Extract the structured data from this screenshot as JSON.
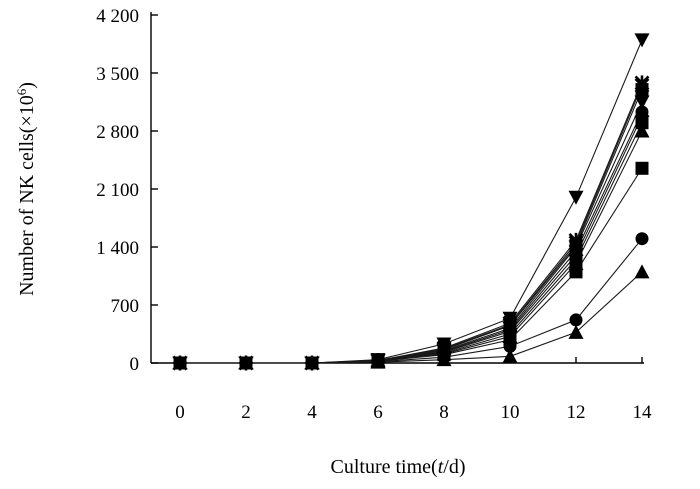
{
  "chart_data": {
    "type": "line",
    "title": "",
    "xlabel": "Culture time(t/d)",
    "xlabel_parts": [
      "Culture time(",
      "t",
      "/d)"
    ],
    "ylabel": "Number of NK cells(×10⁶)",
    "ylabel_parts": [
      "Number of NK cells(×10",
      "6",
      ")"
    ],
    "x": [
      0,
      2,
      4,
      6,
      8,
      10,
      12,
      14
    ],
    "xlim": [
      0,
      14
    ],
    "ylim": [
      0,
      4200
    ],
    "x_tick_labels": [
      "0",
      "2",
      "4",
      "6",
      "8",
      "10",
      "12",
      "14"
    ],
    "y_ticks": [
      0,
      700,
      1400,
      2100,
      2800,
      3500,
      4200
    ],
    "y_tick_labels": [
      "0",
      "700",
      "1 400",
      "2 100",
      "2 800",
      "3 500",
      "4 200"
    ],
    "grid": false,
    "legend": "none",
    "series": [
      {
        "marker": "triangle-down",
        "values": [
          0,
          0,
          0,
          40,
          230,
          540,
          2000,
          3900
        ]
      },
      {
        "marker": "asterisk",
        "values": [
          0,
          0,
          0,
          30,
          180,
          480,
          1480,
          3380
        ]
      },
      {
        "marker": "x",
        "values": [
          0,
          0,
          0,
          30,
          170,
          460,
          1450,
          3350
        ]
      },
      {
        "marker": "square",
        "values": [
          0,
          0,
          0,
          30,
          160,
          450,
          1420,
          3300
        ]
      },
      {
        "marker": "triangle-down",
        "values": [
          0,
          0,
          0,
          25,
          150,
          420,
          1400,
          3150
        ]
      },
      {
        "marker": "circle",
        "values": [
          0,
          0,
          0,
          25,
          140,
          400,
          1350,
          3030
        ]
      },
      {
        "marker": "diamond",
        "values": [
          0,
          0,
          0,
          25,
          130,
          380,
          1300,
          2980
        ]
      },
      {
        "marker": "square",
        "values": [
          0,
          0,
          0,
          20,
          120,
          350,
          1250,
          2900
        ]
      },
      {
        "marker": "triangle",
        "values": [
          0,
          0,
          0,
          20,
          110,
          320,
          1200,
          2800
        ]
      },
      {
        "marker": "square",
        "values": [
          0,
          0,
          0,
          20,
          100,
          280,
          1100,
          2350
        ]
      },
      {
        "marker": "circle",
        "values": [
          0,
          0,
          0,
          15,
          70,
          200,
          520,
          1500
        ]
      },
      {
        "marker": "triangle",
        "values": [
          0,
          0,
          0,
          10,
          40,
          80,
          370,
          1100
        ]
      }
    ]
  }
}
